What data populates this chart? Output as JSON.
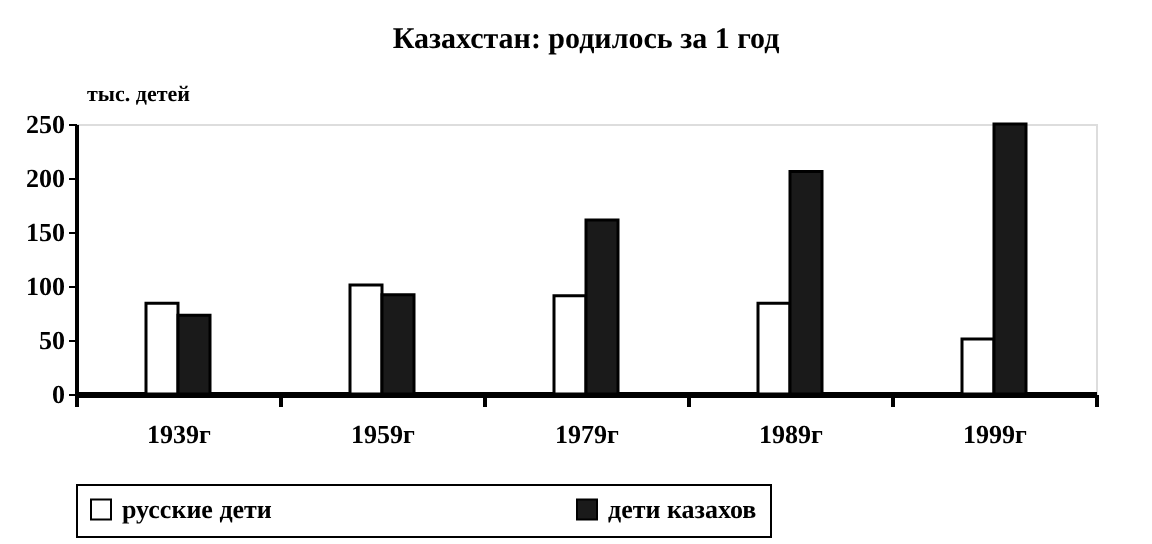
{
  "chart_data": {
    "type": "bar",
    "title": "Казахстан:  родилось за 1 год",
    "ylabel": "тыс. детей",
    "categories": [
      "1939г",
      "1959г",
      "1979г",
      "1989г",
      "1999г"
    ],
    "series": [
      {
        "name": "русские дети",
        "color": "#ffffff",
        "values": [
          84,
          101,
          91,
          84,
          51
        ]
      },
      {
        "name": "дети казахов",
        "color": "#1a1a1a",
        "values": [
          73,
          92,
          161,
          206,
          250
        ]
      }
    ],
    "ylim": [
      0,
      250
    ],
    "yticks": [
      0,
      50,
      100,
      150,
      200,
      250
    ],
    "grid": false,
    "legend": "bottom"
  }
}
